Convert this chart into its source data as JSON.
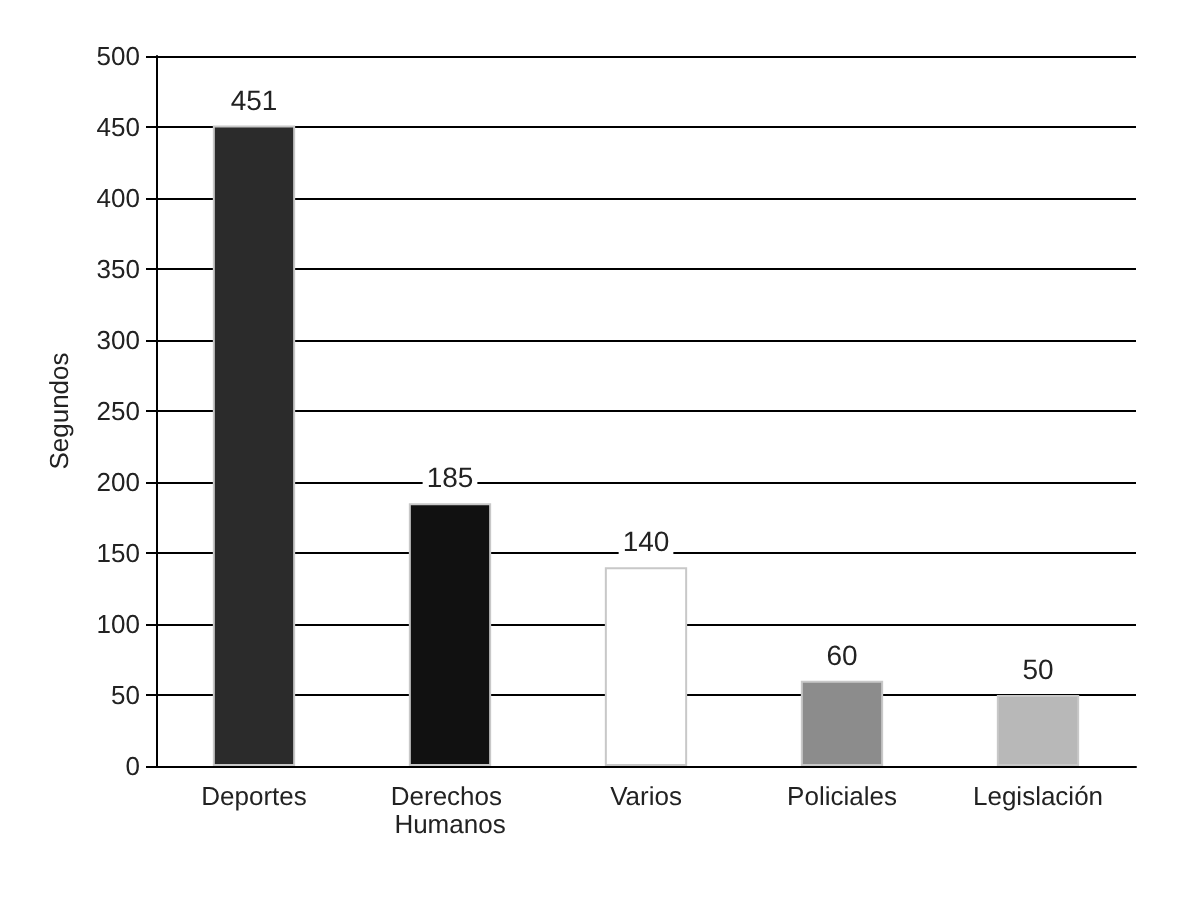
{
  "chart_data": {
    "type": "bar",
    "ylabel": "Segundos",
    "categories": [
      "Deportes",
      "Derechos Humanos",
      "Varios",
      "Policiales",
      "Legislación"
    ],
    "values": [
      451,
      185,
      140,
      60,
      50
    ],
    "colors": [
      "#2b2b2b",
      "#111111",
      "#ffffff",
      "#8c8c8c",
      "#b8b8b8"
    ],
    "ylim": [
      0,
      500
    ],
    "yticks": [
      0,
      50,
      100,
      150,
      200,
      250,
      300,
      350,
      400,
      450,
      500
    ],
    "grid": true,
    "data_labels": true
  }
}
